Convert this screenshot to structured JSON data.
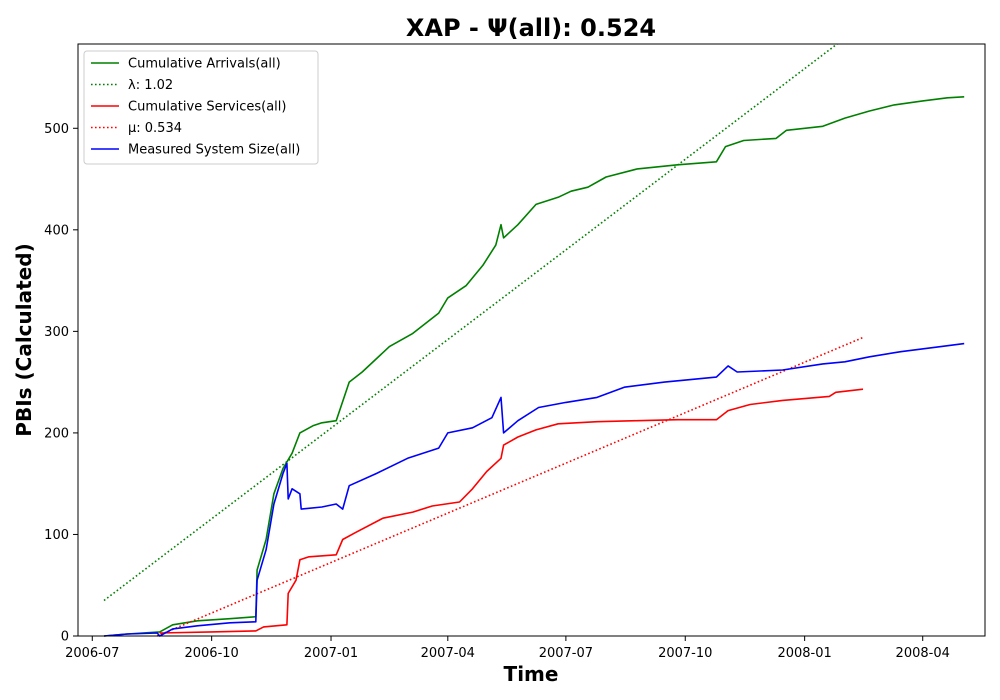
{
  "chart_data": {
    "type": "line",
    "title": "XAP -  Ψ(all): 0.524",
    "xlabel": "Time",
    "ylabel": "PBIs (Calculated)",
    "x_axis_type": "date",
    "xlim": [
      "2006-06-20",
      "2008-05-19"
    ],
    "ylim": [
      0,
      583
    ],
    "x_ticks": [
      "2006-07",
      "2006-10",
      "2007-01",
      "2007-04",
      "2007-07",
      "2007-10",
      "2008-01",
      "2008-04"
    ],
    "y_ticks": [
      0,
      100,
      200,
      300,
      400,
      500
    ],
    "grid": false,
    "legend_position": "top-left",
    "legend": [
      {
        "label": "Cumulative Arrivals(all)",
        "color": "#008000",
        "style": "solid"
      },
      {
        "label": "λ: 1.02",
        "color": "#008000",
        "style": "dotted"
      },
      {
        "label": "Cumulative Services(all)",
        "color": "#ff0000",
        "style": "solid"
      },
      {
        "label": "μ: 0.534",
        "color": "#ff0000",
        "style": "dotted"
      },
      {
        "label": "Measured System Size(all)",
        "color": "#0000ff",
        "style": "solid"
      }
    ],
    "series": [
      {
        "name": "Cumulative Arrivals(all)",
        "color": "#008000",
        "style": "solid",
        "points": [
          [
            "2006-07-10",
            0
          ],
          [
            "2006-07-28",
            2
          ],
          [
            "2006-08-22",
            4
          ],
          [
            "2006-09-01",
            11
          ],
          [
            "2006-09-20",
            15
          ],
          [
            "2006-10-15",
            17
          ],
          [
            "2006-11-04",
            19
          ],
          [
            "2006-11-05",
            65
          ],
          [
            "2006-11-12",
            95
          ],
          [
            "2006-11-18",
            140
          ],
          [
            "2006-11-25",
            165
          ],
          [
            "2006-12-02",
            180
          ],
          [
            "2006-12-08",
            200
          ],
          [
            "2006-12-18",
            207
          ],
          [
            "2006-12-25",
            210
          ],
          [
            "2007-01-05",
            212
          ],
          [
            "2007-01-15",
            250
          ],
          [
            "2007-01-25",
            260
          ],
          [
            "2007-02-15",
            285
          ],
          [
            "2007-03-05",
            298
          ],
          [
            "2007-03-25",
            318
          ],
          [
            "2007-04-01",
            333
          ],
          [
            "2007-04-15",
            345
          ],
          [
            "2007-04-28",
            365
          ],
          [
            "2007-05-08",
            385
          ],
          [
            "2007-05-12",
            405
          ],
          [
            "2007-05-14",
            392
          ],
          [
            "2007-05-25",
            405
          ],
          [
            "2007-06-08",
            425
          ],
          [
            "2007-06-25",
            432
          ],
          [
            "2007-07-05",
            438
          ],
          [
            "2007-07-18",
            442
          ],
          [
            "2007-08-01",
            452
          ],
          [
            "2007-08-25",
            460
          ],
          [
            "2007-09-25",
            464
          ],
          [
            "2007-10-25",
            467
          ],
          [
            "2007-11-01",
            482
          ],
          [
            "2007-11-15",
            488
          ],
          [
            "2007-12-10",
            490
          ],
          [
            "2007-12-18",
            498
          ],
          [
            "2008-01-15",
            502
          ],
          [
            "2008-02-01",
            510
          ],
          [
            "2008-02-20",
            517
          ],
          [
            "2008-03-10",
            523
          ],
          [
            "2008-04-01",
            527
          ],
          [
            "2008-04-20",
            530
          ],
          [
            "2008-05-03",
            531
          ]
        ]
      },
      {
        "name": "λ: 1.02",
        "color": "#008000",
        "style": "dotted",
        "points": [
          [
            "2006-07-10",
            35
          ],
          [
            "2008-01-26",
            583
          ]
        ]
      },
      {
        "name": "Cumulative Services(all)",
        "color": "#ff0000",
        "style": "solid",
        "points": [
          [
            "2006-08-22",
            3
          ],
          [
            "2006-10-01",
            4
          ],
          [
            "2006-11-04",
            5
          ],
          [
            "2006-11-10",
            9
          ],
          [
            "2006-11-28",
            11
          ],
          [
            "2006-11-29",
            42
          ],
          [
            "2006-12-05",
            55
          ],
          [
            "2006-12-08",
            75
          ],
          [
            "2006-12-15",
            78
          ],
          [
            "2007-01-05",
            80
          ],
          [
            "2007-01-10",
            95
          ],
          [
            "2007-01-20",
            102
          ],
          [
            "2007-02-10",
            116
          ],
          [
            "2007-03-05",
            122
          ],
          [
            "2007-03-20",
            128
          ],
          [
            "2007-04-10",
            132
          ],
          [
            "2007-04-20",
            145
          ],
          [
            "2007-05-01",
            162
          ],
          [
            "2007-05-12",
            175
          ],
          [
            "2007-05-14",
            188
          ],
          [
            "2007-05-25",
            196
          ],
          [
            "2007-06-08",
            203
          ],
          [
            "2007-06-25",
            209
          ],
          [
            "2007-07-25",
            211
          ],
          [
            "2007-08-25",
            212
          ],
          [
            "2007-09-25",
            213
          ],
          [
            "2007-10-25",
            213
          ],
          [
            "2007-11-03",
            222
          ],
          [
            "2007-11-20",
            228
          ],
          [
            "2007-12-15",
            232
          ],
          [
            "2008-01-20",
            236
          ],
          [
            "2008-01-25",
            240
          ],
          [
            "2008-02-15",
            243
          ]
        ]
      },
      {
        "name": "μ: 0.534",
        "color": "#ff0000",
        "style": "dotted",
        "points": [
          [
            "2006-08-20",
            0
          ],
          [
            "2008-02-15",
            294
          ]
        ]
      },
      {
        "name": "Measured System Size(all)",
        "color": "#0000ff",
        "style": "solid",
        "points": [
          [
            "2006-07-10",
            0
          ],
          [
            "2006-07-28",
            2
          ],
          [
            "2006-08-20",
            3
          ],
          [
            "2006-08-22",
            0
          ],
          [
            "2006-09-01",
            7
          ],
          [
            "2006-09-20",
            10
          ],
          [
            "2006-10-15",
            13
          ],
          [
            "2006-11-04",
            14
          ],
          [
            "2006-11-05",
            55
          ],
          [
            "2006-11-12",
            85
          ],
          [
            "2006-11-18",
            130
          ],
          [
            "2006-11-25",
            160
          ],
          [
            "2006-11-28",
            170
          ],
          [
            "2006-11-29",
            135
          ],
          [
            "2006-12-02",
            145
          ],
          [
            "2006-12-08",
            140
          ],
          [
            "2006-12-09",
            125
          ],
          [
            "2006-12-25",
            127
          ],
          [
            "2007-01-05",
            130
          ],
          [
            "2007-01-10",
            125
          ],
          [
            "2007-01-15",
            148
          ],
          [
            "2007-02-05",
            160
          ],
          [
            "2007-03-01",
            175
          ],
          [
            "2007-03-25",
            185
          ],
          [
            "2007-04-01",
            200
          ],
          [
            "2007-04-20",
            205
          ],
          [
            "2007-05-05",
            215
          ],
          [
            "2007-05-12",
            235
          ],
          [
            "2007-05-14",
            200
          ],
          [
            "2007-05-25",
            212
          ],
          [
            "2007-06-10",
            225
          ],
          [
            "2007-07-01",
            230
          ],
          [
            "2007-07-25",
            235
          ],
          [
            "2007-08-15",
            245
          ],
          [
            "2007-09-15",
            250
          ],
          [
            "2007-10-25",
            255
          ],
          [
            "2007-11-03",
            266
          ],
          [
            "2007-11-10",
            260
          ],
          [
            "2007-12-15",
            262
          ],
          [
            "2008-01-15",
            268
          ],
          [
            "2008-02-01",
            270
          ],
          [
            "2008-02-20",
            275
          ],
          [
            "2008-03-15",
            280
          ],
          [
            "2008-04-15",
            285
          ],
          [
            "2008-05-03",
            288
          ]
        ]
      }
    ]
  }
}
